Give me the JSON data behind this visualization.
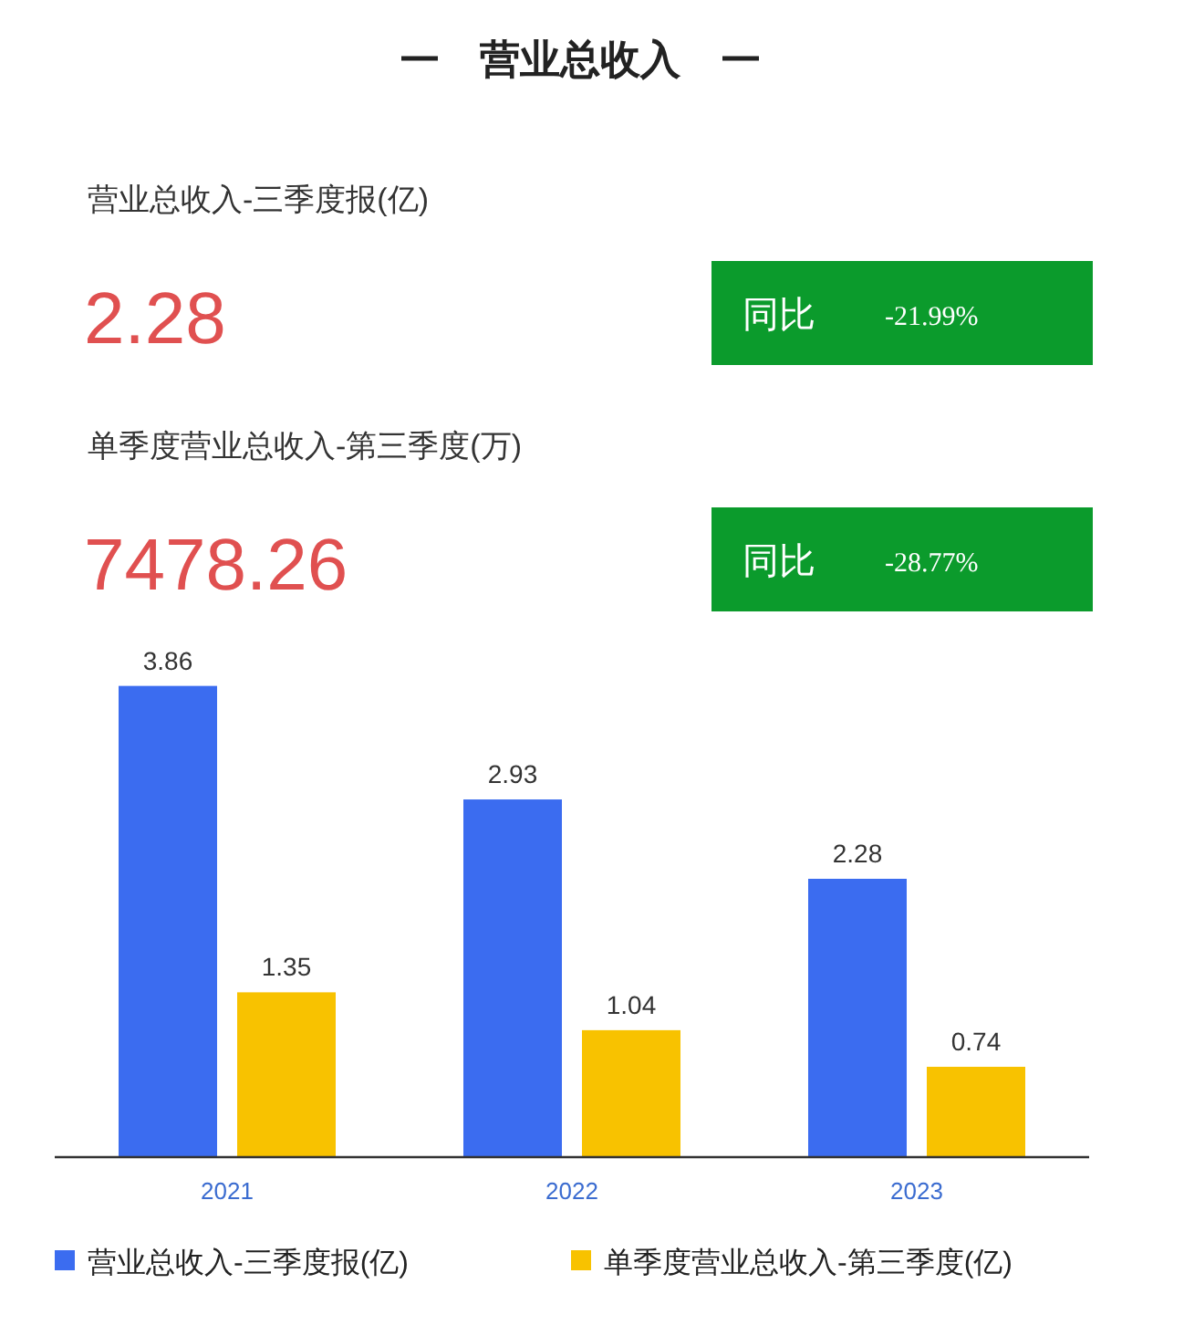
{
  "chart_data": [
    {
      "type": "other",
      "title": "营业总收入",
      "annotations": [
        "营业总收入-三季度报(亿)",
        "2.28",
        "同比",
        "-21.99%",
        "单季度营业总收入-第三季度(万)",
        "7478.26",
        "同比",
        "-28.77%"
      ]
    },
    {
      "type": "bar",
      "categories": [
        "2021",
        "2022",
        "2023"
      ],
      "series": [
        {
          "name": "营业总收入-三季度报(亿)",
          "color": "#3b6cf0",
          "values": [
            3.86,
            2.93,
            2.28
          ]
        },
        {
          "name": "单季度营业总收入-第三季度(亿)",
          "color": "#f8c200",
          "values": [
            1.35,
            1.04,
            0.74
          ]
        }
      ],
      "data_labels": true,
      "tick_labels": "x",
      "legend": "bottom"
    }
  ]
}
